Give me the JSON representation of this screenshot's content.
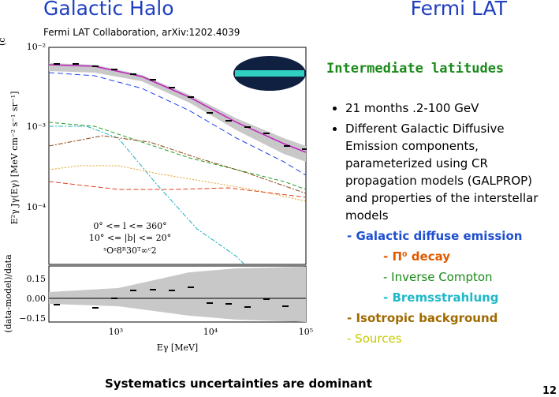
{
  "header": {
    "title": "Galactic Halo",
    "right_title": "Fermi LAT",
    "citation": "Fermi LAT Collaboration, arXiv:1202.4039"
  },
  "figure": {
    "panel_label": "(c",
    "y_label": "E²γ Jγ(Eγ) [MeV cm⁻² s⁻¹ sr⁻¹]",
    "residual_label": "(data-model)/data",
    "x_label": "Eγ [MeV]",
    "y_ticks": [
      "10⁻²",
      "10⁻³",
      "10⁻⁴"
    ],
    "x_ticks": [
      "10³",
      "10⁴",
      "10⁵"
    ],
    "residual_ticks": [
      "0.15",
      "0.00",
      "−0.15"
    ],
    "annotations": [
      "0° <= l <= 360°",
      "10° <= |b| <= 20°",
      "ˢOᶻ8ᴿ30ᵀ∞ᶜ2"
    ]
  },
  "content": {
    "heading": "Intermediate latitudes",
    "bullets": [
      "21 months .2-100 GeV",
      "Different Galactic Diffusive Emission components, parameterized using CR propagation models (GALPROP) and properties of the interstellar models"
    ],
    "components": [
      "- Galactic diffuse emission",
      "-  Π⁰ decay",
      "- Inverse Compton",
      "- Bremsstrahlung",
      "- Isotropic background",
      "- Sources"
    ]
  },
  "footer": {
    "note": "Systematics uncertainties are dominant",
    "page": "12"
  }
}
